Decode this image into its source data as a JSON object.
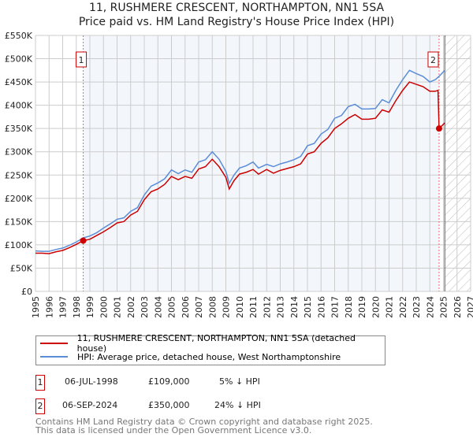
{
  "chart_data": {
    "type": "line",
    "title": "11, RUSHMERE CRESCENT, NORTHAMPTON, NN1 5SA",
    "subtitle": "Price paid vs. HM Land Registry's House Price Index (HPI)",
    "xlim": [
      1995,
      2027
    ],
    "ylim": [
      0,
      550000
    ],
    "yticks": [
      {
        "v": 0,
        "label": "£0"
      },
      {
        "v": 50000,
        "label": "£50K"
      },
      {
        "v": 100000,
        "label": "£100K"
      },
      {
        "v": 150000,
        "label": "£150K"
      },
      {
        "v": 200000,
        "label": "£200K"
      },
      {
        "v": 250000,
        "label": "£250K"
      },
      {
        "v": 300000,
        "label": "£300K"
      },
      {
        "v": 350000,
        "label": "£350K"
      },
      {
        "v": 400000,
        "label": "£400K"
      },
      {
        "v": 450000,
        "label": "£450K"
      },
      {
        "v": 500000,
        "label": "£500K"
      },
      {
        "v": 550000,
        "label": "£550K"
      }
    ],
    "xticks": [
      "1995",
      "1996",
      "1997",
      "1998",
      "1999",
      "2000",
      "2001",
      "2002",
      "2003",
      "2004",
      "2005",
      "2006",
      "2007",
      "2008",
      "2009",
      "2010",
      "2011",
      "2012",
      "2013",
      "2014",
      "2015",
      "2016",
      "2017",
      "2018",
      "2019",
      "2020",
      "2021",
      "2022",
      "2023",
      "2024",
      "2025",
      "2026",
      "2027"
    ],
    "grid": true,
    "shaded_range": [
      1998.51,
      2024.68
    ],
    "forecast_from": 2025.1,
    "series": [
      {
        "name": "11, RUSHMERE CRESCENT, NORTHAMPTON, NN1 5SA (detached house)",
        "color": "#cc0000",
        "x": [
          1995,
          1995.5,
          1996,
          1996.5,
          1997,
          1997.5,
          1998,
          1998.51,
          1999,
          1999.5,
          2000,
          2000.5,
          2001,
          2001.5,
          2002,
          2002.5,
          2003,
          2003.5,
          2004,
          2004.5,
          2005,
          2005.5,
          2006,
          2006.5,
          2007,
          2007.5,
          2008,
          2008.5,
          2009,
          2009.25,
          2009.6,
          2010,
          2010.5,
          2011,
          2011.4,
          2012,
          2012.5,
          2013,
          2013.5,
          2014,
          2014.5,
          2015,
          2015.5,
          2016,
          2016.5,
          2017,
          2017.5,
          2018,
          2018.5,
          2019,
          2019.5,
          2020,
          2020.5,
          2021,
          2021.5,
          2022,
          2022.5,
          2023,
          2023.5,
          2024,
          2024.4,
          2024.6,
          2024.68,
          2025.1
        ],
        "y": [
          82000,
          82000,
          81000,
          85000,
          88000,
          94000,
          101000,
          109000,
          112000,
          120000,
          128000,
          137000,
          147000,
          150000,
          164000,
          172000,
          197000,
          214000,
          220000,
          230000,
          247000,
          240000,
          247000,
          243000,
          263000,
          268000,
          284000,
          268000,
          245000,
          220000,
          238000,
          252000,
          256000,
          262000,
          252000,
          262000,
          254000,
          260000,
          264000,
          268000,
          274000,
          295000,
          300000,
          318000,
          330000,
          350000,
          360000,
          372000,
          380000,
          370000,
          370000,
          372000,
          390000,
          385000,
          410000,
          432000,
          450000,
          445000,
          440000,
          430000,
          430000,
          432000,
          350000,
          362000
        ]
      },
      {
        "name": "HPI: Average price, detached house, West Northamptonshire",
        "color": "#5b8dd6",
        "x": [
          1995,
          1995.5,
          1996,
          1996.5,
          1997,
          1997.5,
          1998,
          1998.51,
          1999,
          1999.5,
          2000,
          2000.5,
          2001,
          2001.5,
          2002,
          2002.5,
          2003,
          2003.5,
          2004,
          2004.5,
          2005,
          2005.5,
          2006,
          2006.5,
          2007,
          2007.5,
          2008,
          2008.5,
          2009,
          2009.25,
          2009.6,
          2010,
          2010.5,
          2011,
          2011.4,
          2012,
          2012.5,
          2013,
          2013.5,
          2014,
          2014.5,
          2015,
          2015.5,
          2016,
          2016.5,
          2017,
          2017.5,
          2018,
          2018.5,
          2019,
          2019.5,
          2020,
          2020.5,
          2021,
          2021.5,
          2022,
          2022.5,
          2023,
          2023.5,
          2024,
          2024.4,
          2024.68,
          2025.1
        ],
        "y": [
          87000,
          86000,
          86000,
          90000,
          93000,
          99000,
          106000,
          115000,
          119000,
          126000,
          136000,
          145000,
          155000,
          158000,
          172000,
          180000,
          207000,
          226000,
          233000,
          242000,
          261000,
          253000,
          261000,
          256000,
          278000,
          283000,
          300000,
          284000,
          258000,
          232000,
          250000,
          265000,
          270000,
          278000,
          265000,
          273000,
          268000,
          274000,
          278000,
          283000,
          290000,
          313000,
          318000,
          338000,
          348000,
          372000,
          378000,
          397000,
          402000,
          392000,
          392000,
          393000,
          412000,
          405000,
          432000,
          455000,
          475000,
          468000,
          462000,
          450000,
          455000,
          462000,
          475000
        ]
      }
    ],
    "sales": [
      {
        "id": "1",
        "x": 1998.51,
        "y": 109000
      },
      {
        "id": "2",
        "x": 2024.68,
        "y": 350000
      }
    ]
  },
  "legend": {
    "red": "11, RUSHMERE CRESCENT, NORTHAMPTON, NN1 5SA (detached house)",
    "blue": "HPI: Average price, detached house, West Northamptonshire"
  },
  "transactions": [
    {
      "id": "1",
      "date": "06-JUL-1998",
      "price": "£109,000",
      "hpi": "5% ↓ HPI"
    },
    {
      "id": "2",
      "date": "06-SEP-2024",
      "price": "£350,000",
      "hpi": "24% ↓ HPI"
    }
  ],
  "footer": {
    "line1": "Contains HM Land Registry data © Crown copyright and database right 2025.",
    "line2": "This data is licensed under the Open Government Licence v3.0."
  }
}
